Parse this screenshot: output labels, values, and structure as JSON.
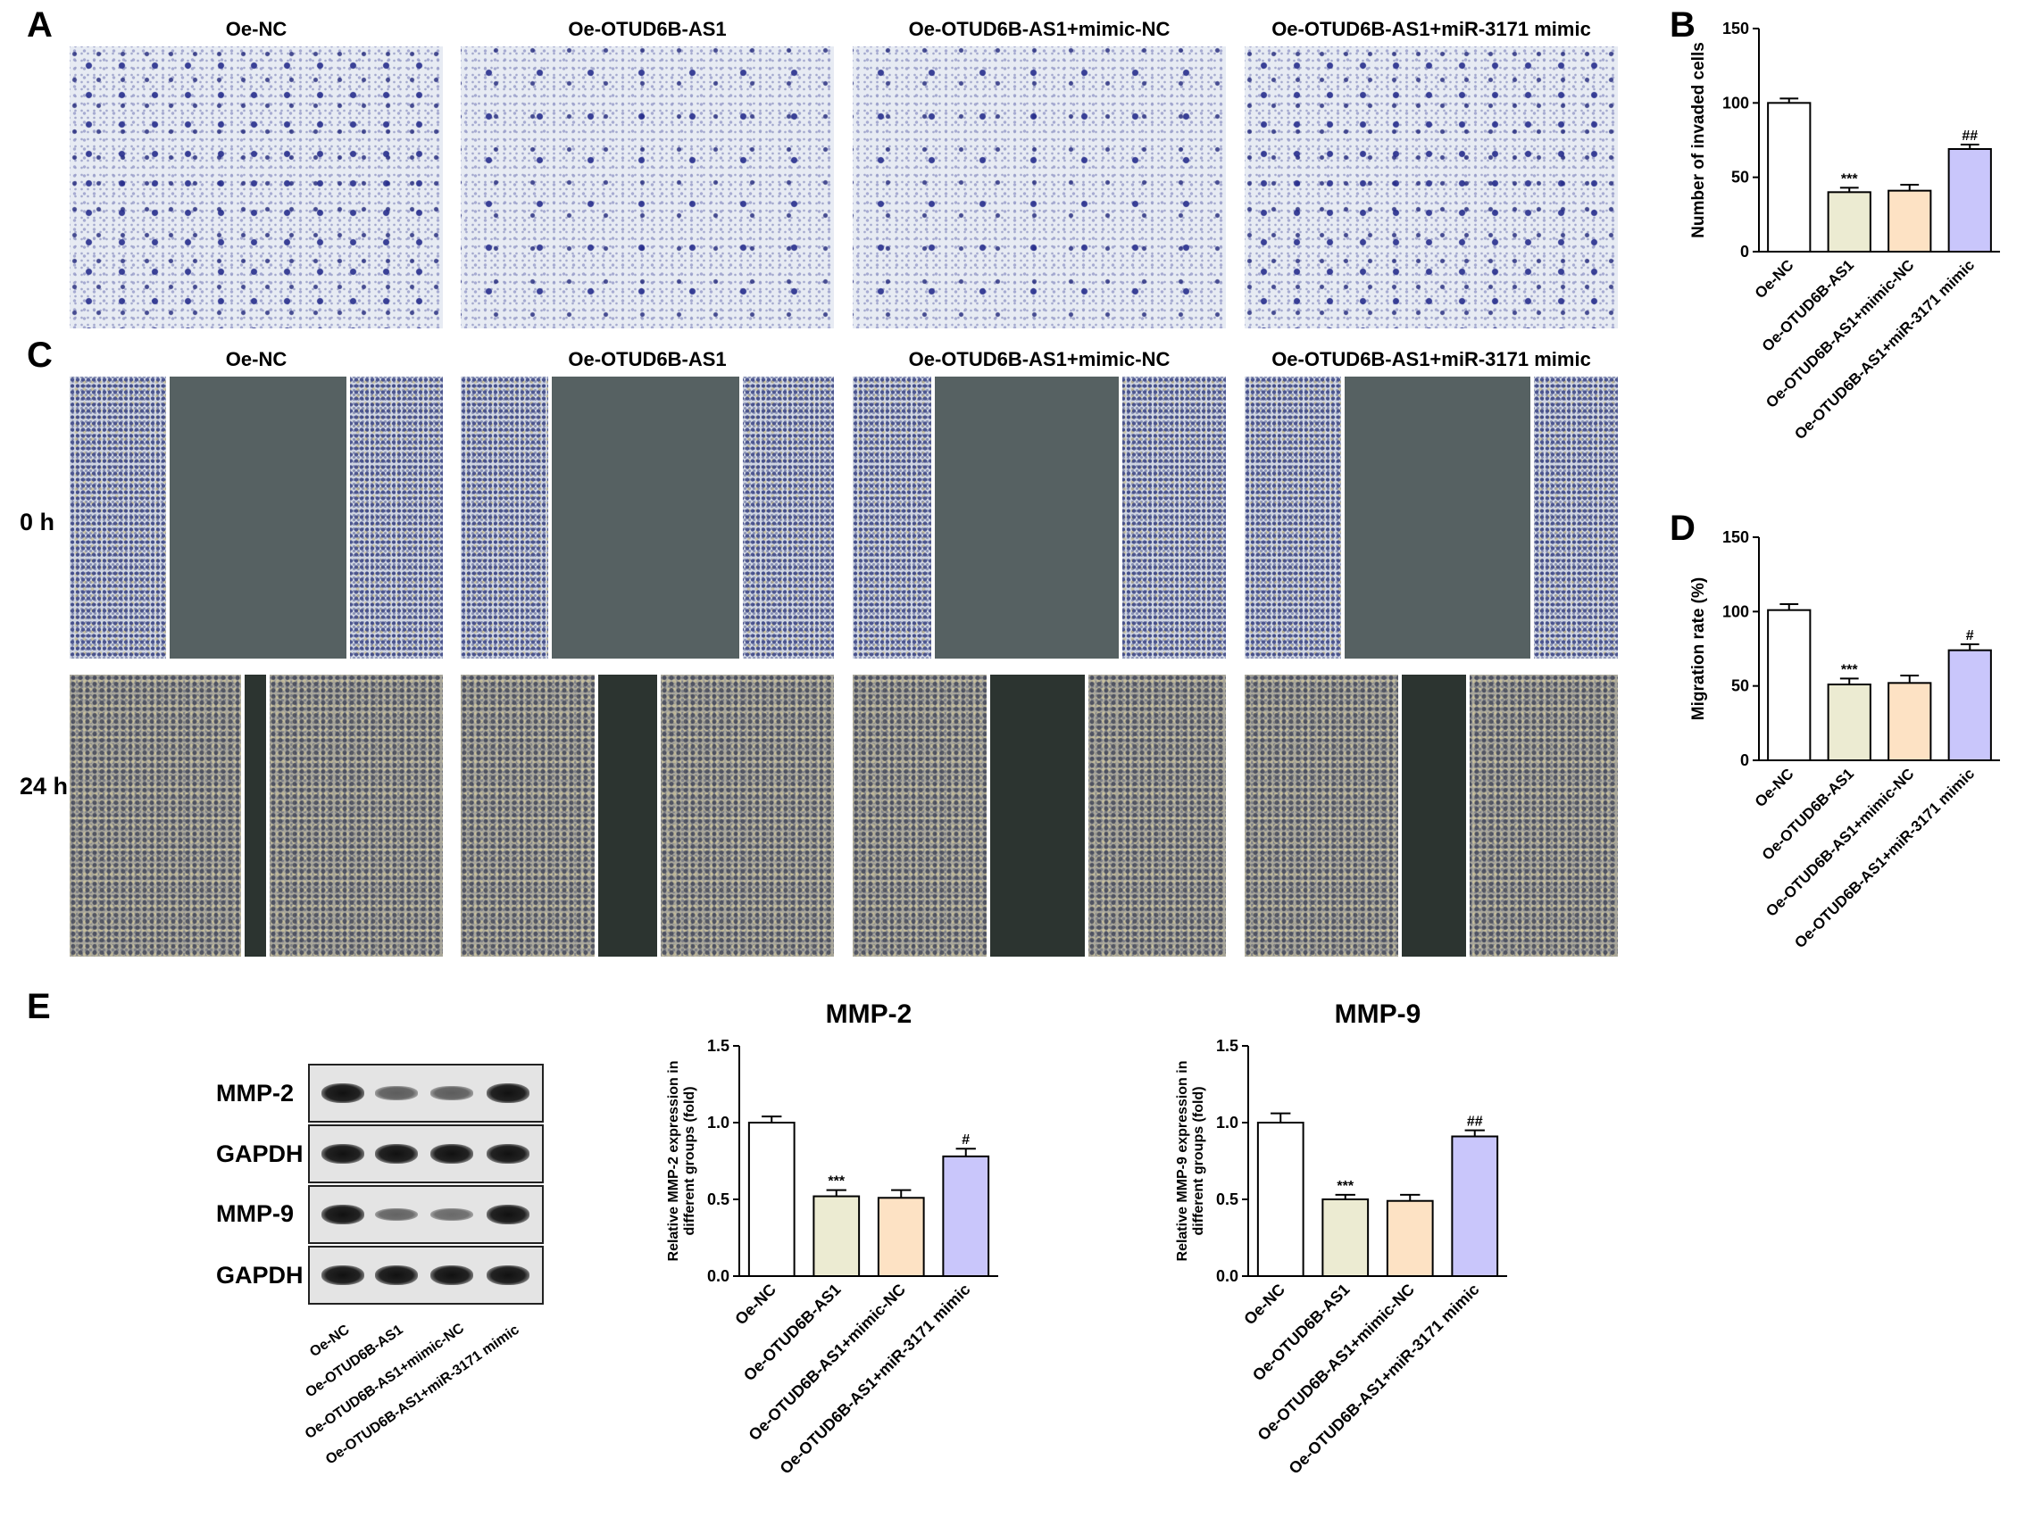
{
  "panel_labels": {
    "A": "A",
    "B": "B",
    "C": "C",
    "D": "D",
    "E": "E"
  },
  "groups": [
    "Oe-NC",
    "Oe-OTUD6B-AS1",
    "Oe-OTUD6B-AS1+mimic-NC",
    "Oe-OTUD6B-AS1+miR-3171 mimic"
  ],
  "panel_a": {
    "titles": [
      "Oe-NC",
      "Oe-OTUD6B-AS1",
      "Oe-OTUD6B-AS1+mimic-NC",
      "Oe-OTUD6B-AS1+miR-3171 mimic"
    ]
  },
  "panel_c": {
    "titles": [
      "Oe-NC",
      "Oe-OTUD6B-AS1",
      "Oe-OTUD6B-AS1+mimic-NC",
      "Oe-OTUD6B-AS1+miR-3171 mimic"
    ],
    "row_labels": [
      "0 h",
      "24 h"
    ]
  },
  "panel_e_blot": {
    "rows": [
      "MMP-2",
      "GAPDH",
      "MMP-9",
      "GAPDH"
    ],
    "lanes": [
      "Oe-NC",
      "Oe-OTUD6B-AS1",
      "Oe-OTUD6B-AS1+mimic-NC",
      "Oe-OTUD6B-AS1+miR-3171 mimic"
    ],
    "band_intensity": [
      [
        1.0,
        0.45,
        0.45,
        1.0
      ],
      [
        1.0,
        1.0,
        1.0,
        1.0
      ],
      [
        1.0,
        0.4,
        0.35,
        1.0
      ],
      [
        1.0,
        1.0,
        1.0,
        1.0
      ]
    ]
  },
  "colors": [
    "#ffffff",
    "#ecebd2",
    "#fde2c4",
    "#c9c6fb"
  ],
  "chart_data": [
    {
      "id": "B",
      "type": "bar",
      "categories": [
        "Oe-NC",
        "Oe-OTUD6B-AS1",
        "Oe-OTUD6B-AS1+mimic-NC",
        "Oe-OTUD6B-AS1+miR-3171 mimic"
      ],
      "values": [
        100,
        40,
        41,
        69
      ],
      "errors": [
        3,
        3,
        4,
        3
      ],
      "annotations": [
        "",
        "***",
        "",
        "##"
      ],
      "title": "",
      "ylabel": "Number of invaded cells",
      "ylim": [
        0,
        150
      ],
      "yticks": [
        "0",
        "50",
        "100",
        "150"
      ]
    },
    {
      "id": "D",
      "type": "bar",
      "categories": [
        "Oe-NC",
        "Oe-OTUD6B-AS1",
        "Oe-OTUD6B-AS1+mimic-NC",
        "Oe-OTUD6B-AS1+miR-3171 mimic"
      ],
      "values": [
        101,
        51,
        52,
        74
      ],
      "errors": [
        4,
        4,
        5,
        4
      ],
      "annotations": [
        "",
        "***",
        "",
        "#"
      ],
      "title": "",
      "ylabel": "Migration rate (%)",
      "ylim": [
        0,
        150
      ],
      "yticks": [
        "0",
        "50",
        "100",
        "150"
      ]
    },
    {
      "id": "MMP2",
      "type": "bar",
      "categories": [
        "Oe-NC",
        "Oe-OTUD6B-AS1",
        "Oe-OTUD6B-AS1+mimic-NC",
        "Oe-OTUD6B-AS1+miR-3171 mimic"
      ],
      "values": [
        1.0,
        0.52,
        0.51,
        0.78
      ],
      "errors": [
        0.04,
        0.04,
        0.05,
        0.05
      ],
      "annotations": [
        "",
        "***",
        "",
        "#"
      ],
      "title": "MMP-2",
      "ylabel": "Relative MMP-2 expression in different groups (fold)",
      "ylim": [
        0,
        1.5
      ],
      "yticks": [
        "0.0",
        "0.5",
        "1.0",
        "1.5"
      ]
    },
    {
      "id": "MMP9",
      "type": "bar",
      "categories": [
        "Oe-NC",
        "Oe-OTUD6B-AS1",
        "Oe-OTUD6B-AS1+mimic-NC",
        "Oe-OTUD6B-AS1+miR-3171 mimic"
      ],
      "values": [
        1.0,
        0.5,
        0.49,
        0.91
      ],
      "errors": [
        0.06,
        0.03,
        0.04,
        0.04
      ],
      "annotations": [
        "",
        "***",
        "",
        "##"
      ],
      "title": "MMP-9",
      "ylabel": "Relative MMP-9 expression in different groups (fold)",
      "ylim": [
        0,
        1.5
      ],
      "yticks": [
        "0.0",
        "0.5",
        "1.0",
        "1.5"
      ]
    }
  ]
}
